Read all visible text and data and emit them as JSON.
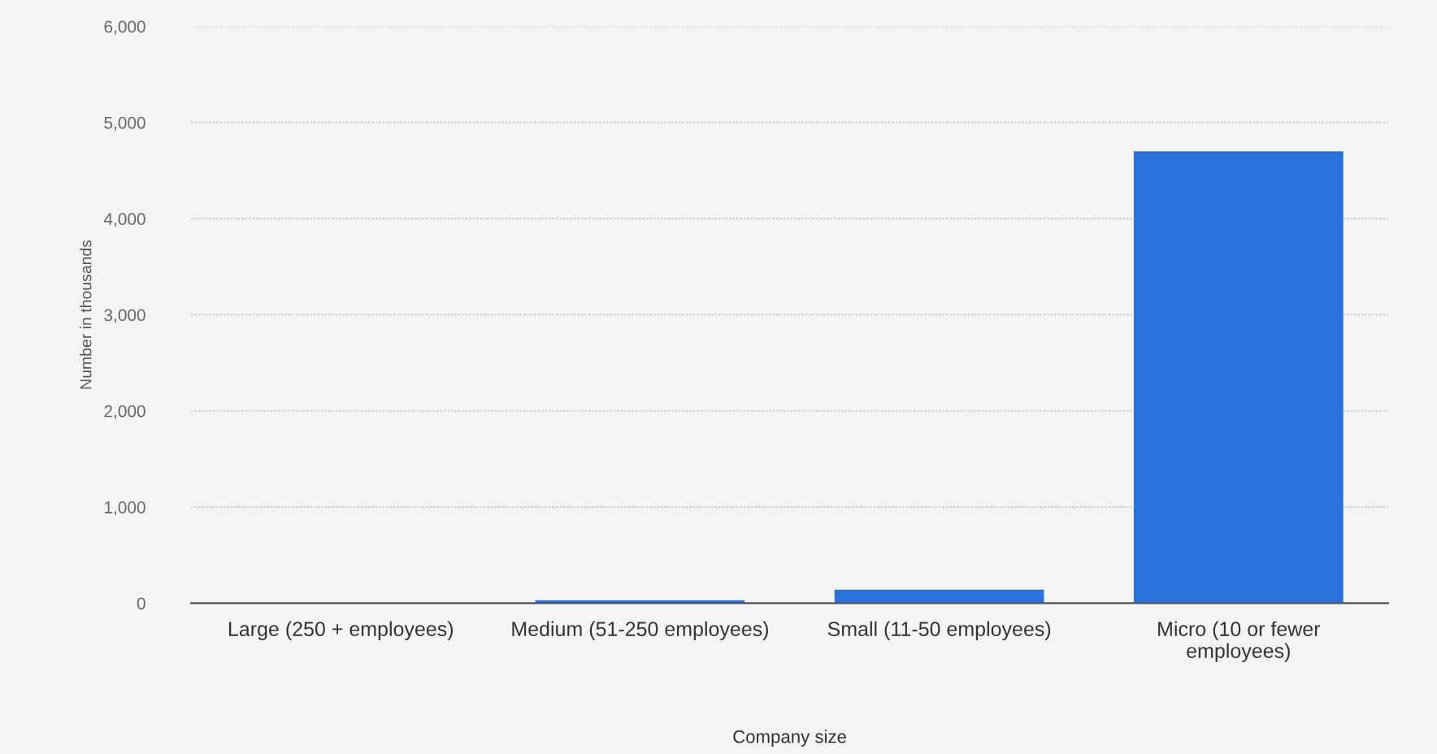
{
  "chart_data": {
    "type": "bar",
    "xlabel": "Company size",
    "ylabel": "Number in thousands",
    "categories": [
      "Large (250 + employees)",
      "Medium (51-250 employees)",
      "Small (11-50 employees)",
      "Micro (10 or fewer\nemployees)"
    ],
    "values": [
      null,
      30,
      140,
      4700
    ],
    "color": "#2872d9",
    "ylim": [
      0,
      6000
    ],
    "yticks": [
      {
        "value": 0,
        "label": "0"
      },
      {
        "value": 1000,
        "label": "1,000"
      },
      {
        "value": 2000,
        "label": "2,000"
      },
      {
        "value": 3000,
        "label": "3,000"
      },
      {
        "value": 4000,
        "label": "4,000"
      },
      {
        "value": 5000,
        "label": "5,000"
      },
      {
        "value": 6000,
        "label": "6,000"
      }
    ],
    "grid": "y",
    "legend": false
  }
}
